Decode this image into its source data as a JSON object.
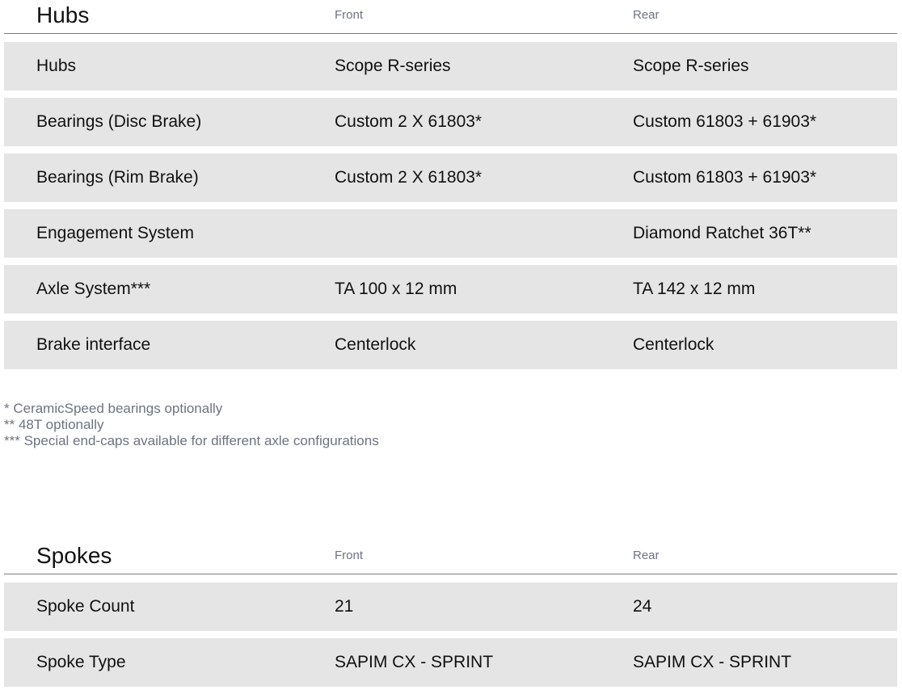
{
  "hubs": {
    "title": "Hubs",
    "col_front": "Front",
    "col_rear": "Rear",
    "rows": [
      {
        "label": "Hubs",
        "front": "Scope R-series",
        "rear": "Scope R-series"
      },
      {
        "label": "Bearings (Disc Brake)",
        "front": "Custom 2 X 61803*",
        "rear": "Custom 61803 + 61903*"
      },
      {
        "label": "Bearings (Rim Brake)",
        "front": "Custom 2 X 61803*",
        "rear": "Custom 61803 + 61903*"
      },
      {
        "label": "Engagement System",
        "front": "",
        "rear": "Diamond Ratchet 36T**"
      },
      {
        "label": "Axle System***",
        "front": "TA 100 x 12 mm",
        "rear": "TA 142 x 12 mm"
      },
      {
        "label": "Brake interface",
        "front": "Centerlock",
        "rear": "Centerlock"
      }
    ],
    "footnotes": [
      "* CeramicSpeed bearings optionally",
      "** 48T optionally",
      "*** Special end-caps available for different axle configurations"
    ]
  },
  "spokes": {
    "title": "Spokes",
    "col_front": "Front",
    "col_rear": "Rear",
    "rows": [
      {
        "label": "Spoke Count",
        "front": "21",
        "rear": "24"
      },
      {
        "label": "Spoke Type",
        "front": "SAPIM CX - SPRINT",
        "rear": "SAPIM CX - SPRINT"
      }
    ]
  }
}
